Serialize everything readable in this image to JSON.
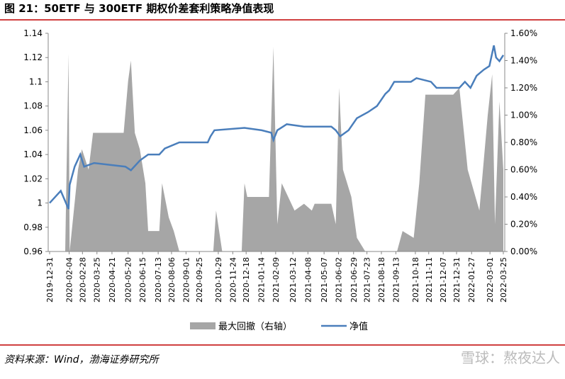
{
  "chart_data": {
    "type": "area-line",
    "title": "图 21：50ETF 与 300ETF 期权价差套利策略净值表现",
    "source": "资料来源：Wind，渤海证券研究所",
    "watermark": "雪球：熬夜达人",
    "xlim": [
      "2019-12-31",
      "2022-03-25"
    ],
    "xticks": [
      "2019-12-31",
      "2020-02-04",
      "2020-02-28",
      "2020-03-25",
      "2020-04-21",
      "2020-05-20",
      "2020-06-15",
      "2020-07-13",
      "2020-08-06",
      "2020-09-01",
      "2020-09-25",
      "2020-10-29",
      "2020-11-24",
      "2020-12-18",
      "2021-01-14",
      "2021-02-09",
      "2021-03-12",
      "2021-04-08",
      "2021-05-07",
      "2021-06-02",
      "2021-06-29",
      "2021-07-23",
      "2021-08-18",
      "2021-09-13",
      "2021-10-18",
      "2021-11-11",
      "2021-12-07",
      "2021-12-31",
      "2022-01-27",
      "2022-03-01",
      "2022-03-25"
    ],
    "ylim": [
      0.96,
      1.14
    ],
    "yticks": [
      0.96,
      0.98,
      1,
      1.02,
      1.04,
      1.06,
      1.08,
      1.1,
      1.12,
      1.14
    ],
    "y2lim": [
      0,
      1.6
    ],
    "y2ticks": [
      {
        "value": 0,
        "label": "0.00%"
      },
      {
        "value": 0.2,
        "label": "0.20%"
      },
      {
        "value": 0.4,
        "label": "0.40%"
      },
      {
        "value": 0.6,
        "label": "0.60%"
      },
      {
        "value": 0.8,
        "label": "0.80%"
      },
      {
        "value": 1.0,
        "label": "1.00%"
      },
      {
        "value": 1.2,
        "label": "1.20%"
      },
      {
        "value": 1.4,
        "label": "1.40%"
      },
      {
        "value": 1.6,
        "label": "1.60%"
      }
    ],
    "series": [
      {
        "name": "最大回撤（右轴）",
        "color": "#a6a6a6",
        "axis": "y2",
        "kind": "area",
        "x": [
          "2019-12-31",
          "2020-01-28",
          "2020-02-03",
          "2020-02-05",
          "2020-02-20",
          "2020-02-27",
          "2020-03-10",
          "2020-03-18",
          "2020-05-12",
          "2020-05-20",
          "2020-05-25",
          "2020-06-01",
          "2020-06-10",
          "2020-06-20",
          "2020-06-25",
          "2020-07-15",
          "2020-07-20",
          "2020-08-01",
          "2020-08-10",
          "2020-08-20",
          "2020-10-20",
          "2020-10-25",
          "2020-11-05",
          "2020-12-10",
          "2020-12-15",
          "2020-12-20",
          "2021-01-28",
          "2021-02-05",
          "2021-02-12",
          "2021-02-20",
          "2021-03-15",
          "2021-04-01",
          "2021-04-15",
          "2021-04-20",
          "2021-05-20",
          "2021-05-28",
          "2021-06-03",
          "2021-06-10",
          "2021-06-25",
          "2021-07-05",
          "2021-07-20",
          "2021-09-15",
          "2021-09-25",
          "2021-10-15",
          "2021-10-25",
          "2021-11-05",
          "2021-12-25",
          "2022-01-05",
          "2022-01-20",
          "2022-02-10",
          "2022-02-25",
          "2022-03-05",
          "2022-03-10",
          "2022-03-18",
          "2022-03-25"
        ],
        "values": [
          0,
          0,
          1.45,
          0,
          0.6,
          0.75,
          0.6,
          0.87,
          0.87,
          1.25,
          1.4,
          0.87,
          0.75,
          0.5,
          0.15,
          0.15,
          0.5,
          0.25,
          0.15,
          0,
          0,
          0.3,
          0,
          0,
          0.5,
          0.4,
          0.4,
          1.5,
          0.2,
          0.5,
          0.3,
          0.35,
          0.3,
          0.35,
          0.35,
          0.2,
          1.2,
          0.6,
          0.4,
          0.1,
          0,
          0,
          0.15,
          0.1,
          0.5,
          1.15,
          1.15,
          1.2,
          0.6,
          0.3,
          1.0,
          1.3,
          0.2,
          1.1,
          0.6
        ]
      },
      {
        "name": "净值",
        "color": "#4a7ebb",
        "kind": "line",
        "x": [
          "2019-12-31",
          "2020-01-20",
          "2020-02-03",
          "2020-02-05",
          "2020-02-14",
          "2020-02-24",
          "2020-03-02",
          "2020-03-20",
          "2020-05-15",
          "2020-05-25",
          "2020-06-10",
          "2020-06-25",
          "2020-07-15",
          "2020-07-25",
          "2020-08-20",
          "2020-10-10",
          "2020-10-15",
          "2020-10-22",
          "2020-12-15",
          "2021-01-15",
          "2021-02-01",
          "2021-02-05",
          "2021-02-12",
          "2021-03-01",
          "2021-04-01",
          "2021-05-20",
          "2021-05-28",
          "2021-06-05",
          "2021-06-20",
          "2021-07-05",
          "2021-07-25",
          "2021-08-10",
          "2021-08-25",
          "2021-09-01",
          "2021-09-10",
          "2021-10-10",
          "2021-10-20",
          "2021-11-15",
          "2021-11-25",
          "2022-01-05",
          "2022-01-15",
          "2022-01-25",
          "2022-02-05",
          "2022-02-18",
          "2022-02-28",
          "2022-03-08",
          "2022-03-12",
          "2022-03-18",
          "2022-03-25"
        ],
        "values": [
          1.0,
          1.01,
          0.995,
          1.015,
          1.03,
          1.04,
          1.03,
          1.033,
          1.03,
          1.027,
          1.035,
          1.04,
          1.04,
          1.045,
          1.05,
          1.05,
          1.055,
          1.06,
          1.062,
          1.06,
          1.058,
          1.052,
          1.06,
          1.065,
          1.063,
          1.063,
          1.06,
          1.055,
          1.06,
          1.07,
          1.075,
          1.08,
          1.09,
          1.093,
          1.1,
          1.1,
          1.103,
          1.1,
          1.095,
          1.095,
          1.1,
          1.095,
          1.105,
          1.11,
          1.113,
          1.13,
          1.12,
          1.117,
          1.122
        ]
      }
    ]
  }
}
